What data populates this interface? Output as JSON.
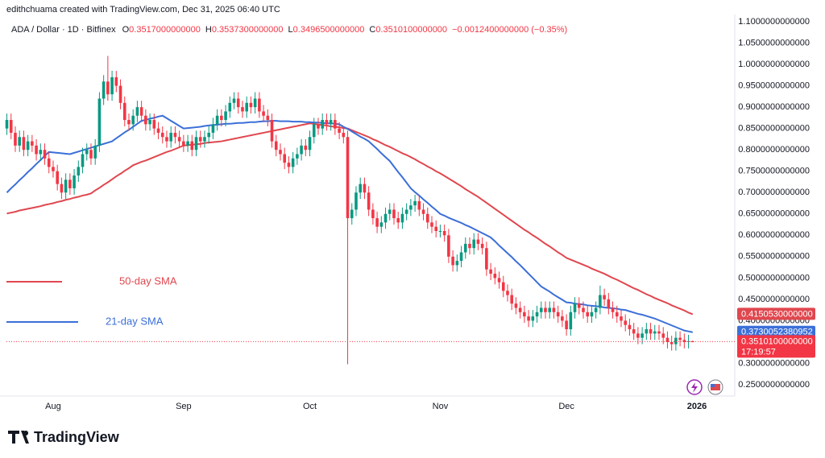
{
  "header": {
    "credit": "edithchuama created with TradingView.com, Dec 31, 2025 06:40 UTC",
    "symbol": "ADA / Dollar · 1D · Bitfinex",
    "ohlc": [
      {
        "key": "O",
        "value": "0.3517000000000"
      },
      {
        "key": "H",
        "value": "0.3537300000000"
      },
      {
        "key": "L",
        "value": "0.3496500000000"
      },
      {
        "key": "C",
        "value": "0.3510100000000"
      }
    ],
    "change": "−0.0012400000000 (−0.35%)"
  },
  "chart_data": {
    "type": "candlestick",
    "up_color": "#089981",
    "down_color": "#f23645",
    "open": [
      0.85,
      0.87,
      0.84,
      0.81,
      0.83,
      0.8,
      0.82,
      0.81,
      0.79,
      0.8,
      0.78,
      0.76,
      0.75,
      0.72,
      0.7,
      0.73,
      0.71,
      0.74,
      0.76,
      0.79,
      0.8,
      0.78,
      0.81,
      0.92,
      0.96,
      0.93,
      0.97,
      0.95,
      0.91,
      0.87,
      0.86,
      0.88,
      0.9,
      0.88,
      0.86,
      0.87,
      0.85,
      0.84,
      0.83,
      0.82,
      0.84,
      0.83,
      0.82,
      0.81,
      0.82,
      0.8,
      0.83,
      0.82,
      0.83,
      0.84,
      0.86,
      0.88,
      0.87,
      0.89,
      0.91,
      0.92,
      0.9,
      0.89,
      0.91,
      0.9,
      0.92,
      0.89,
      0.88,
      0.87,
      0.82,
      0.8,
      0.79,
      0.77,
      0.76,
      0.78,
      0.79,
      0.81,
      0.8,
      0.83,
      0.86,
      0.85,
      0.87,
      0.86,
      0.87,
      0.85,
      0.84,
      0.83,
      0.64,
      0.66,
      0.7,
      0.72,
      0.7,
      0.66,
      0.64,
      0.62,
      0.63,
      0.65,
      0.66,
      0.64,
      0.63,
      0.65,
      0.66,
      0.67,
      0.68,
      0.66,
      0.65,
      0.63,
      0.62,
      0.61,
      0.61,
      0.6,
      0.55,
      0.53,
      0.54,
      0.56,
      0.58,
      0.57,
      0.59,
      0.58,
      0.57,
      0.52,
      0.51,
      0.5,
      0.49,
      0.47,
      0.46,
      0.44,
      0.43,
      0.42,
      0.41,
      0.4,
      0.41,
      0.42,
      0.43,
      0.42,
      0.43,
      0.42,
      0.41,
      0.4,
      0.38,
      0.42,
      0.44,
      0.43,
      0.42,
      0.41,
      0.42,
      0.43,
      0.46,
      0.45,
      0.43,
      0.42,
      0.41,
      0.4,
      0.39,
      0.38,
      0.37,
      0.36,
      0.37,
      0.38,
      0.37,
      0.375,
      0.37,
      0.36,
      0.35,
      0.345,
      0.36,
      0.355,
      0.35,
      0.3517
    ],
    "high": [
      0.885,
      0.885,
      0.855,
      0.845,
      0.845,
      0.835,
      0.835,
      0.825,
      0.815,
      0.815,
      0.795,
      0.775,
      0.765,
      0.735,
      0.745,
      0.745,
      0.755,
      0.775,
      0.805,
      0.815,
      0.815,
      0.825,
      0.935,
      0.975,
      1.02,
      0.985,
      0.985,
      0.965,
      0.925,
      0.885,
      0.895,
      0.915,
      0.915,
      0.895,
      0.885,
      0.885,
      0.865,
      0.855,
      0.845,
      0.855,
      0.855,
      0.845,
      0.835,
      0.835,
      0.835,
      0.845,
      0.845,
      0.845,
      0.855,
      0.875,
      0.895,
      0.895,
      0.905,
      0.925,
      0.935,
      0.935,
      0.915,
      0.925,
      0.925,
      0.935,
      0.935,
      0.905,
      0.895,
      0.885,
      0.835,
      0.815,
      0.805,
      0.785,
      0.795,
      0.805,
      0.825,
      0.825,
      0.845,
      0.875,
      0.875,
      0.885,
      0.885,
      0.885,
      0.885,
      0.865,
      0.855,
      0.845,
      0.675,
      0.715,
      0.735,
      0.735,
      0.715,
      0.675,
      0.655,
      0.645,
      0.665,
      0.675,
      0.675,
      0.655,
      0.665,
      0.675,
      0.685,
      0.695,
      0.695,
      0.675,
      0.665,
      0.645,
      0.635,
      0.625,
      0.625,
      0.615,
      0.565,
      0.555,
      0.575,
      0.595,
      0.595,
      0.605,
      0.605,
      0.595,
      0.585,
      0.535,
      0.525,
      0.515,
      0.505,
      0.485,
      0.475,
      0.455,
      0.445,
      0.435,
      0.425,
      0.425,
      0.435,
      0.445,
      0.445,
      0.445,
      0.445,
      0.435,
      0.425,
      0.415,
      0.435,
      0.455,
      0.455,
      0.445,
      0.435,
      0.435,
      0.445,
      0.482,
      0.475,
      0.465,
      0.445,
      0.435,
      0.425,
      0.415,
      0.405,
      0.395,
      0.385,
      0.385,
      0.395,
      0.395,
      0.39,
      0.39,
      0.385,
      0.375,
      0.365,
      0.375,
      0.375,
      0.37,
      0.367,
      0.3537
    ],
    "low": [
      0.835,
      0.825,
      0.795,
      0.795,
      0.785,
      0.785,
      0.795,
      0.775,
      0.775,
      0.765,
      0.745,
      0.735,
      0.705,
      0.685,
      0.685,
      0.695,
      0.695,
      0.725,
      0.745,
      0.775,
      0.765,
      0.765,
      0.795,
      0.905,
      0.915,
      0.915,
      0.935,
      0.895,
      0.855,
      0.845,
      0.845,
      0.865,
      0.865,
      0.845,
      0.845,
      0.835,
      0.825,
      0.815,
      0.805,
      0.805,
      0.815,
      0.805,
      0.795,
      0.795,
      0.785,
      0.785,
      0.805,
      0.805,
      0.815,
      0.825,
      0.845,
      0.855,
      0.855,
      0.875,
      0.895,
      0.885,
      0.875,
      0.875,
      0.885,
      0.885,
      0.875,
      0.865,
      0.855,
      0.805,
      0.785,
      0.775,
      0.755,
      0.745,
      0.745,
      0.765,
      0.775,
      0.785,
      0.785,
      0.815,
      0.835,
      0.835,
      0.845,
      0.845,
      0.835,
      0.825,
      0.815,
      0.298,
      0.625,
      0.645,
      0.685,
      0.685,
      0.645,
      0.625,
      0.605,
      0.605,
      0.615,
      0.635,
      0.625,
      0.615,
      0.615,
      0.635,
      0.645,
      0.655,
      0.645,
      0.635,
      0.615,
      0.605,
      0.595,
      0.595,
      0.585,
      0.535,
      0.515,
      0.515,
      0.525,
      0.545,
      0.555,
      0.555,
      0.565,
      0.555,
      0.505,
      0.495,
      0.485,
      0.475,
      0.455,
      0.445,
      0.425,
      0.415,
      0.405,
      0.395,
      0.385,
      0.385,
      0.395,
      0.405,
      0.405,
      0.405,
      0.405,
      0.395,
      0.385,
      0.365,
      0.365,
      0.405,
      0.415,
      0.405,
      0.395,
      0.395,
      0.405,
      0.415,
      0.435,
      0.415,
      0.405,
      0.395,
      0.385,
      0.375,
      0.365,
      0.355,
      0.345,
      0.345,
      0.355,
      0.355,
      0.355,
      0.355,
      0.345,
      0.335,
      0.33,
      0.33,
      0.34,
      0.335,
      0.335,
      0.3496
    ],
    "close": [
      0.87,
      0.84,
      0.81,
      0.83,
      0.8,
      0.82,
      0.81,
      0.79,
      0.8,
      0.78,
      0.76,
      0.75,
      0.72,
      0.7,
      0.73,
      0.71,
      0.74,
      0.76,
      0.79,
      0.8,
      0.78,
      0.81,
      0.92,
      0.96,
      0.93,
      0.97,
      0.95,
      0.91,
      0.87,
      0.86,
      0.88,
      0.9,
      0.88,
      0.86,
      0.87,
      0.85,
      0.84,
      0.83,
      0.82,
      0.84,
      0.83,
      0.82,
      0.81,
      0.82,
      0.8,
      0.83,
      0.82,
      0.83,
      0.84,
      0.86,
      0.88,
      0.87,
      0.89,
      0.91,
      0.92,
      0.9,
      0.89,
      0.91,
      0.9,
      0.92,
      0.89,
      0.88,
      0.87,
      0.82,
      0.8,
      0.79,
      0.77,
      0.76,
      0.78,
      0.79,
      0.81,
      0.8,
      0.83,
      0.86,
      0.85,
      0.87,
      0.86,
      0.87,
      0.85,
      0.84,
      0.83,
      0.64,
      0.66,
      0.7,
      0.72,
      0.7,
      0.66,
      0.64,
      0.62,
      0.63,
      0.65,
      0.66,
      0.64,
      0.63,
      0.65,
      0.66,
      0.67,
      0.68,
      0.66,
      0.65,
      0.63,
      0.62,
      0.61,
      0.61,
      0.6,
      0.55,
      0.53,
      0.54,
      0.56,
      0.58,
      0.57,
      0.59,
      0.58,
      0.57,
      0.52,
      0.51,
      0.5,
      0.49,
      0.47,
      0.46,
      0.44,
      0.43,
      0.42,
      0.41,
      0.4,
      0.41,
      0.42,
      0.43,
      0.42,
      0.43,
      0.42,
      0.41,
      0.4,
      0.38,
      0.42,
      0.44,
      0.43,
      0.42,
      0.41,
      0.42,
      0.43,
      0.46,
      0.45,
      0.43,
      0.42,
      0.41,
      0.4,
      0.39,
      0.38,
      0.37,
      0.36,
      0.37,
      0.38,
      0.37,
      0.375,
      0.37,
      0.36,
      0.35,
      0.345,
      0.36,
      0.355,
      0.35,
      0.3522,
      0.351
    ],
    "series": [
      {
        "name": "50-day SMA",
        "color": "#e0474f",
        "values": [
          0.651,
          0.653,
          0.655,
          0.658,
          0.66,
          0.662,
          0.664,
          0.666,
          0.668,
          0.671,
          0.673,
          0.675,
          0.678,
          0.68,
          0.683,
          0.685,
          0.688,
          0.69,
          0.693,
          0.695,
          0.698,
          0.705,
          0.711,
          0.718,
          0.724,
          0.731,
          0.738,
          0.744,
          0.751,
          0.757,
          0.764,
          0.768,
          0.772,
          0.775,
          0.779,
          0.783,
          0.787,
          0.791,
          0.795,
          0.798,
          0.802,
          0.806,
          0.81,
          0.811,
          0.812,
          0.813,
          0.814,
          0.816,
          0.817,
          0.818,
          0.819,
          0.82,
          0.822,
          0.824,
          0.826,
          0.828,
          0.83,
          0.832,
          0.834,
          0.836,
          0.838,
          0.84,
          0.842,
          0.844,
          0.846,
          0.848,
          0.85,
          0.852,
          0.854,
          0.856,
          0.858,
          0.86,
          0.862,
          0.861,
          0.859,
          0.858,
          0.857,
          0.855,
          0.854,
          0.853,
          0.851,
          0.85,
          0.846,
          0.842,
          0.838,
          0.834,
          0.83,
          0.825,
          0.821,
          0.816,
          0.811,
          0.807,
          0.802,
          0.797,
          0.792,
          0.788,
          0.783,
          0.778,
          0.772,
          0.767,
          0.761,
          0.756,
          0.75,
          0.745,
          0.739,
          0.733,
          0.727,
          0.721,
          0.715,
          0.708,
          0.702,
          0.696,
          0.69,
          0.683,
          0.676,
          0.669,
          0.662,
          0.655,
          0.648,
          0.641,
          0.634,
          0.627,
          0.62,
          0.613,
          0.607,
          0.6,
          0.594,
          0.587,
          0.58,
          0.574,
          0.567,
          0.56,
          0.554,
          0.547,
          0.543,
          0.539,
          0.535,
          0.531,
          0.527,
          0.522,
          0.518,
          0.514,
          0.51,
          0.505,
          0.5,
          0.496,
          0.491,
          0.486,
          0.481,
          0.476,
          0.472,
          0.467,
          0.462,
          0.458,
          0.453,
          0.449,
          0.445,
          0.441,
          0.436,
          0.432,
          0.428,
          0.424,
          0.419,
          0.415
        ]
      },
      {
        "name": "21-day SMA",
        "color": "#3b6fd8",
        "values": [
          0.7,
          0.71,
          0.719,
          0.729,
          0.738,
          0.748,
          0.757,
          0.767,
          0.776,
          0.786,
          0.795,
          0.794,
          0.793,
          0.792,
          0.791,
          0.79,
          0.793,
          0.796,
          0.799,
          0.802,
          0.805,
          0.808,
          0.811,
          0.814,
          0.817,
          0.82,
          0.827,
          0.834,
          0.841,
          0.847,
          0.854,
          0.861,
          0.868,
          0.87,
          0.873,
          0.875,
          0.878,
          0.88,
          0.874,
          0.868,
          0.862,
          0.856,
          0.85,
          0.851,
          0.852,
          0.853,
          0.854,
          0.856,
          0.857,
          0.858,
          0.859,
          0.86,
          0.861,
          0.861,
          0.862,
          0.863,
          0.863,
          0.864,
          0.865,
          0.865,
          0.866,
          0.867,
          0.867,
          0.868,
          0.868,
          0.867,
          0.867,
          0.867,
          0.866,
          0.866,
          0.866,
          0.865,
          0.865,
          0.864,
          0.864,
          0.863,
          0.862,
          0.862,
          0.861,
          0.86,
          0.854,
          0.849,
          0.843,
          0.837,
          0.831,
          0.826,
          0.82,
          0.811,
          0.802,
          0.792,
          0.783,
          0.774,
          0.761,
          0.748,
          0.736,
          0.723,
          0.71,
          0.701,
          0.693,
          0.684,
          0.676,
          0.667,
          0.659,
          0.65,
          0.646,
          0.641,
          0.637,
          0.633,
          0.629,
          0.624,
          0.62,
          0.615,
          0.61,
          0.605,
          0.6,
          0.595,
          0.586,
          0.576,
          0.567,
          0.558,
          0.549,
          0.539,
          0.53,
          0.52,
          0.51,
          0.5,
          0.49,
          0.48,
          0.474,
          0.468,
          0.461,
          0.455,
          0.449,
          0.443,
          0.442,
          0.44,
          0.439,
          0.438,
          0.436,
          0.435,
          0.434,
          0.433,
          0.431,
          0.43,
          0.429,
          0.428,
          0.426,
          0.425,
          0.422,
          0.419,
          0.416,
          0.414,
          0.411,
          0.408,
          0.405,
          0.401,
          0.397,
          0.393,
          0.389,
          0.385,
          0.381,
          0.377,
          0.375,
          0.373
        ]
      }
    ],
    "xlim": [
      -0.1,
      173
    ],
    "xticks": [
      {
        "value": 11,
        "label": "Aug"
      },
      {
        "value": 42,
        "label": "Sep"
      },
      {
        "value": 72,
        "label": "Oct"
      },
      {
        "value": 103,
        "label": "Nov"
      },
      {
        "value": 133,
        "label": "Dec"
      },
      {
        "value": 164,
        "label": "2026"
      }
    ],
    "ylim": [
      0.25,
      1.1
    ],
    "yticks": [
      {
        "value": 0.25,
        "label": "0.2500000000000"
      },
      {
        "value": 0.3,
        "label": "0.3000000000000"
      },
      {
        "value": 0.35,
        "label": "0.3500000000000"
      },
      {
        "value": 0.4,
        "label": "0.4000000000000"
      },
      {
        "value": 0.45,
        "label": "0.4500000000000"
      },
      {
        "value": 0.5,
        "label": "0.5000000000000"
      },
      {
        "value": 0.55,
        "label": "0.5500000000000"
      },
      {
        "value": 0.6,
        "label": "0.6000000000000"
      },
      {
        "value": 0.65,
        "label": "0.6500000000000"
      },
      {
        "value": 0.7,
        "label": "0.7000000000000"
      },
      {
        "value": 0.75,
        "label": "0.7500000000000"
      },
      {
        "value": 0.8,
        "label": "0.8000000000000"
      },
      {
        "value": 0.85,
        "label": "0.8500000000000"
      },
      {
        "value": 0.9,
        "label": "0.9000000000000"
      },
      {
        "value": 0.95,
        "label": "0.9500000000000"
      },
      {
        "value": 1.0,
        "label": "1.0000000000000"
      },
      {
        "value": 1.05,
        "label": "1.0500000000000"
      },
      {
        "value": 1.1,
        "label": "1.1000000000000"
      }
    ],
    "grid": false,
    "price_tags": [
      {
        "value": 0.415053,
        "label": "0.4150530000000",
        "color": "#e0474f"
      },
      {
        "value": 0.3730052380952,
        "label": "0.3730052380952",
        "color": "#3b6fd8"
      },
      {
        "value": 0.35101,
        "label": "0.3510100000000",
        "color": "#f23645"
      }
    ],
    "countdown": "17:19:57"
  },
  "footer": {
    "brand": "TradingView"
  }
}
